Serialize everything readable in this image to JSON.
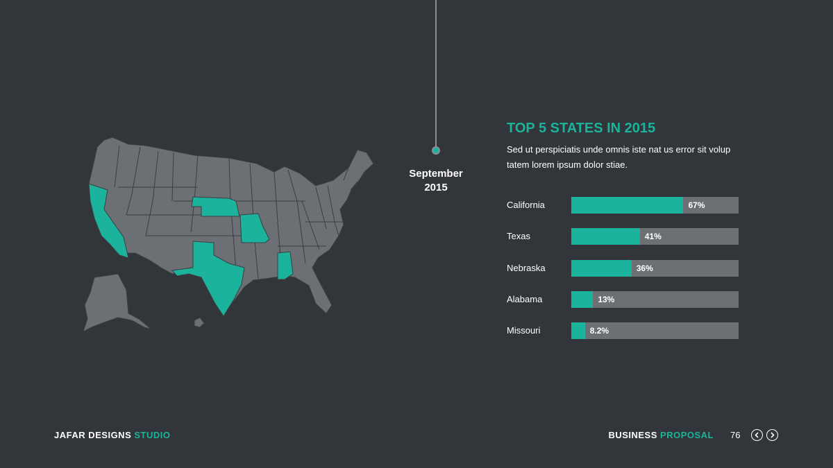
{
  "timeline": {
    "date_line1": "September",
    "date_line2": "2015"
  },
  "panel": {
    "title": "TOP 5 STATES IN 2015",
    "description": "Sed ut perspiciatis unde omnis iste nat us error sit volup tatem lorem ipsum dolor stiae."
  },
  "chart_data": {
    "type": "bar",
    "orientation": "horizontal",
    "categories": [
      "California",
      "Texas",
      "Nebraska",
      "Alabama",
      "Missouri"
    ],
    "values": [
      67,
      41,
      36,
      13,
      8.2
    ],
    "value_labels": [
      "67%",
      "41%",
      "36%",
      "13%",
      "8.2%"
    ],
    "xlim": [
      0,
      100
    ],
    "grid": false
  },
  "map": {
    "highlighted_states": [
      "California",
      "Texas",
      "Nebraska",
      "Missouri",
      "Alabama"
    ]
  },
  "colors": {
    "accent": "#1bb39b",
    "background": "#32363b",
    "map_base": "#6c7075",
    "bar_track": "#6c7075"
  },
  "footer": {
    "brand_main": "JAFAR DESIGNS",
    "brand_accent": "STUDIO",
    "section_main": "BUSINESS",
    "section_accent": "PROPOSAL",
    "page_number": "76"
  },
  "icons": {
    "prev": "chevron-left-icon",
    "next": "chevron-right-icon"
  }
}
